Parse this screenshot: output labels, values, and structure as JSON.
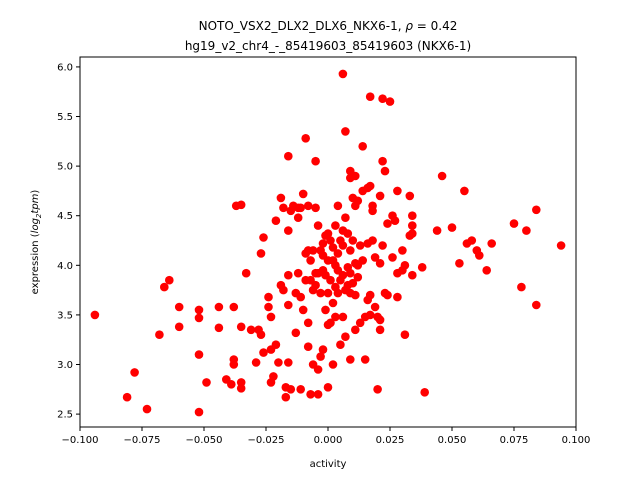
{
  "chart_data": {
    "type": "scatter",
    "title_line1": "NOTO_VSX2_DLX2_DLX6_NKX6-1, ",
    "title_rho_symbol": "ρ",
    "title_rho_value": " = 0.42",
    "title_line2": "hg19_v2_chr4_-_85419603_85419603 (NKX6-1)",
    "xlabel": "activity",
    "ylabel_prefix": "expression (",
    "ylabel_log": "log",
    "ylabel_sub": "2",
    "ylabel_tpm": "tpm",
    "ylabel_suffix": ")",
    "xlim": [
      -0.1,
      0.1
    ],
    "ylim": [
      2.37,
      6.1
    ],
    "xticks": [
      -0.1,
      -0.075,
      -0.05,
      -0.025,
      0.0,
      0.025,
      0.05,
      0.075,
      0.1
    ],
    "xtick_labels": [
      "−0.100",
      "−0.075",
      "−0.050",
      "−0.025",
      "0.000",
      "0.025",
      "0.050",
      "0.075",
      "0.100"
    ],
    "yticks": [
      2.5,
      3.0,
      3.5,
      4.0,
      4.5,
      5.0,
      5.5,
      6.0
    ],
    "ytick_labels": [
      "2.5",
      "3.0",
      "3.5",
      "4.0",
      "4.5",
      "5.0",
      "5.5",
      "6.0"
    ],
    "grid": false,
    "marker_color": "#ff0000",
    "points": [
      [
        -0.094,
        3.5
      ],
      [
        -0.081,
        2.67
      ],
      [
        -0.078,
        2.92
      ],
      [
        -0.073,
        2.55
      ],
      [
        -0.068,
        3.3
      ],
      [
        -0.066,
        3.78
      ],
      [
        -0.064,
        3.85
      ],
      [
        -0.06,
        3.38
      ],
      [
        -0.06,
        3.58
      ],
      [
        -0.052,
        3.55
      ],
      [
        -0.052,
        3.47
      ],
      [
        -0.052,
        3.1
      ],
      [
        -0.052,
        2.52
      ],
      [
        -0.049,
        2.82
      ],
      [
        -0.044,
        3.58
      ],
      [
        -0.044,
        3.37
      ],
      [
        -0.041,
        2.85
      ],
      [
        -0.039,
        2.8
      ],
      [
        -0.038,
        3.05
      ],
      [
        -0.038,
        3.0
      ],
      [
        -0.038,
        3.58
      ],
      [
        -0.037,
        4.6
      ],
      [
        -0.035,
        4.61
      ],
      [
        -0.035,
        3.38
      ],
      [
        -0.035,
        2.82
      ],
      [
        -0.035,
        2.76
      ],
      [
        -0.033,
        3.92
      ],
      [
        -0.031,
        3.35
      ],
      [
        -0.029,
        3.02
      ],
      [
        -0.028,
        3.35
      ],
      [
        -0.027,
        4.12
      ],
      [
        -0.027,
        3.3
      ],
      [
        -0.026,
        4.28
      ],
      [
        -0.026,
        3.12
      ],
      [
        -0.024,
        3.68
      ],
      [
        -0.024,
        3.58
      ],
      [
        -0.023,
        3.48
      ],
      [
        -0.023,
        3.15
      ],
      [
        -0.023,
        2.82
      ],
      [
        -0.022,
        2.88
      ],
      [
        -0.021,
        4.45
      ],
      [
        -0.021,
        3.2
      ],
      [
        -0.02,
        3.02
      ],
      [
        -0.019,
        4.68
      ],
      [
        -0.019,
        3.8
      ],
      [
        -0.018,
        4.58
      ],
      [
        -0.018,
        3.75
      ],
      [
        -0.017,
        2.77
      ],
      [
        -0.017,
        2.67
      ],
      [
        -0.016,
        5.1
      ],
      [
        -0.016,
        4.35
      ],
      [
        -0.016,
        3.9
      ],
      [
        -0.016,
        3.6
      ],
      [
        -0.016,
        3.02
      ],
      [
        -0.015,
        4.55
      ],
      [
        -0.015,
        2.75
      ],
      [
        -0.014,
        4.6
      ],
      [
        -0.013,
        3.72
      ],
      [
        -0.013,
        3.32
      ],
      [
        -0.012,
        4.58
      ],
      [
        -0.012,
        4.48
      ],
      [
        -0.012,
        3.92
      ],
      [
        -0.011,
        4.58
      ],
      [
        -0.011,
        3.68
      ],
      [
        -0.011,
        2.75
      ],
      [
        -0.01,
        4.72
      ],
      [
        -0.01,
        3.55
      ],
      [
        -0.009,
        5.28
      ],
      [
        -0.009,
        4.12
      ],
      [
        -0.009,
        3.85
      ],
      [
        -0.008,
        4.6
      ],
      [
        -0.008,
        4.15
      ],
      [
        -0.008,
        3.42
      ],
      [
        -0.008,
        3.18
      ],
      [
        -0.007,
        4.05
      ],
      [
        -0.007,
        3.85
      ],
      [
        -0.007,
        2.7
      ],
      [
        -0.006,
        4.15
      ],
      [
        -0.006,
        3.75
      ],
      [
        -0.006,
        3.0
      ],
      [
        -0.005,
        5.05
      ],
      [
        -0.005,
        4.58
      ],
      [
        -0.005,
        3.8
      ],
      [
        -0.005,
        3.92
      ],
      [
        -0.004,
        4.4
      ],
      [
        -0.004,
        3.92
      ],
      [
        -0.004,
        2.95
      ],
      [
        -0.004,
        2.7
      ],
      [
        -0.003,
        4.15
      ],
      [
        -0.003,
        3.72
      ],
      [
        -0.003,
        3.08
      ],
      [
        -0.002,
        4.22
      ],
      [
        -0.002,
        4.1
      ],
      [
        -0.002,
        3.95
      ],
      [
        -0.002,
        3.15
      ],
      [
        -0.001,
        4.3
      ],
      [
        -0.001,
        3.9
      ],
      [
        -0.001,
        3.55
      ],
      [
        0.0,
        4.32
      ],
      [
        0.0,
        4.05
      ],
      [
        0.0,
        3.72
      ],
      [
        0.0,
        3.4
      ],
      [
        0.0,
        2.77
      ],
      [
        0.001,
        4.25
      ],
      [
        0.001,
        3.85
      ],
      [
        0.001,
        3.42
      ],
      [
        0.002,
        4.18
      ],
      [
        0.002,
        4.05
      ],
      [
        0.002,
        3.62
      ],
      [
        0.002,
        3.0
      ],
      [
        0.003,
        4.4
      ],
      [
        0.003,
        4.0
      ],
      [
        0.003,
        3.78
      ],
      [
        0.003,
        3.48
      ],
      [
        0.004,
        4.6
      ],
      [
        0.004,
        4.12
      ],
      [
        0.004,
        3.95
      ],
      [
        0.004,
        3.72
      ],
      [
        0.005,
        4.25
      ],
      [
        0.005,
        3.85
      ],
      [
        0.005,
        3.2
      ],
      [
        0.006,
        5.93
      ],
      [
        0.006,
        4.35
      ],
      [
        0.006,
        4.2
      ],
      [
        0.006,
        3.9
      ],
      [
        0.006,
        3.48
      ],
      [
        0.007,
        5.35
      ],
      [
        0.007,
        4.48
      ],
      [
        0.007,
        3.75
      ],
      [
        0.007,
        3.28
      ],
      [
        0.008,
        4.32
      ],
      [
        0.008,
        3.98
      ],
      [
        0.008,
        3.8
      ],
      [
        0.009,
        4.95
      ],
      [
        0.009,
        4.88
      ],
      [
        0.009,
        4.15
      ],
      [
        0.009,
        3.92
      ],
      [
        0.009,
        3.72
      ],
      [
        0.009,
        3.05
      ],
      [
        0.01,
        4.68
      ],
      [
        0.01,
        4.25
      ],
      [
        0.01,
        3.82
      ],
      [
        0.011,
        4.9
      ],
      [
        0.011,
        4.6
      ],
      [
        0.011,
        4.02
      ],
      [
        0.011,
        3.7
      ],
      [
        0.011,
        3.35
      ],
      [
        0.012,
        4.65
      ],
      [
        0.012,
        4.0
      ],
      [
        0.012,
        3.88
      ],
      [
        0.013,
        4.2
      ],
      [
        0.013,
        3.42
      ],
      [
        0.014,
        5.2
      ],
      [
        0.014,
        4.75
      ],
      [
        0.014,
        4.05
      ],
      [
        0.015,
        3.48
      ],
      [
        0.015,
        3.05
      ],
      [
        0.016,
        4.78
      ],
      [
        0.016,
        4.22
      ],
      [
        0.016,
        3.65
      ],
      [
        0.017,
        5.7
      ],
      [
        0.017,
        4.8
      ],
      [
        0.017,
        3.7
      ],
      [
        0.017,
        3.5
      ],
      [
        0.018,
        4.55
      ],
      [
        0.018,
        4.6
      ],
      [
        0.018,
        4.25
      ],
      [
        0.019,
        4.08
      ],
      [
        0.019,
        3.58
      ],
      [
        0.02,
        3.48
      ],
      [
        0.02,
        2.75
      ],
      [
        0.021,
        4.7
      ],
      [
        0.021,
        4.02
      ],
      [
        0.021,
        3.45
      ],
      [
        0.021,
        3.35
      ],
      [
        0.022,
        5.68
      ],
      [
        0.022,
        5.05
      ],
      [
        0.022,
        4.2
      ],
      [
        0.023,
        4.95
      ],
      [
        0.023,
        3.72
      ],
      [
        0.024,
        4.42
      ],
      [
        0.024,
        3.7
      ],
      [
        0.025,
        5.65
      ],
      [
        0.026,
        4.5
      ],
      [
        0.026,
        4.08
      ],
      [
        0.027,
        4.45
      ],
      [
        0.028,
        4.75
      ],
      [
        0.028,
        3.92
      ],
      [
        0.028,
        3.68
      ],
      [
        0.03,
        4.15
      ],
      [
        0.03,
        3.95
      ],
      [
        0.031,
        4.0
      ],
      [
        0.031,
        3.3
      ],
      [
        0.033,
        4.3
      ],
      [
        0.033,
        4.7
      ],
      [
        0.034,
        4.5
      ],
      [
        0.034,
        4.4
      ],
      [
        0.034,
        4.32
      ],
      [
        0.034,
        3.9
      ],
      [
        0.038,
        3.98
      ],
      [
        0.039,
        2.72
      ],
      [
        0.044,
        4.35
      ],
      [
        0.046,
        4.9
      ],
      [
        0.05,
        4.38
      ],
      [
        0.053,
        4.02
      ],
      [
        0.055,
        4.75
      ],
      [
        0.056,
        4.22
      ],
      [
        0.058,
        4.25
      ],
      [
        0.06,
        4.15
      ],
      [
        0.061,
        4.1
      ],
      [
        0.064,
        3.95
      ],
      [
        0.066,
        4.22
      ],
      [
        0.075,
        4.42
      ],
      [
        0.078,
        3.78
      ],
      [
        0.08,
        4.35
      ],
      [
        0.084,
        4.56
      ],
      [
        0.084,
        3.6
      ],
      [
        0.094,
        4.2
      ]
    ]
  }
}
